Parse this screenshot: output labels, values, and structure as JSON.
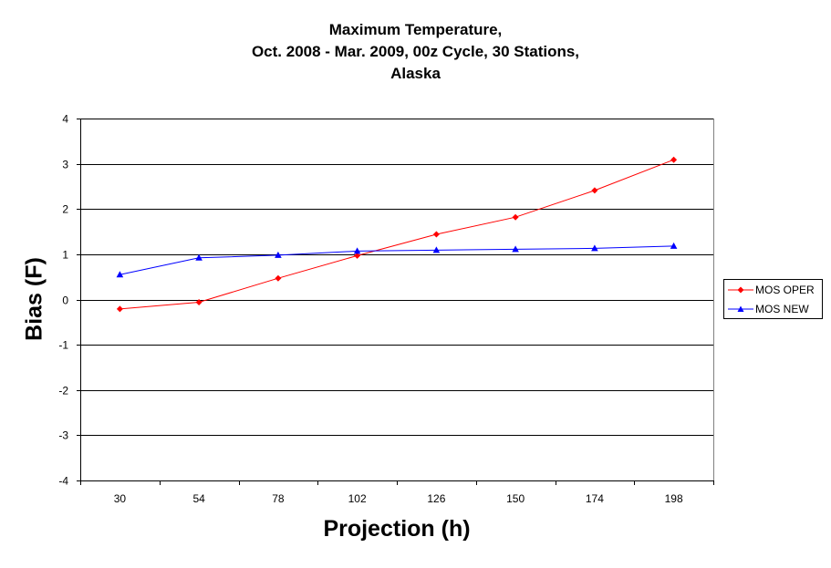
{
  "chart_data": {
    "type": "line",
    "title_lines": [
      "Maximum Temperature,",
      "Oct. 2008 - Mar. 2009, 00z Cycle, 30 Stations,",
      "Alaska"
    ],
    "xlabel": "Projection (h)",
    "ylabel": "Bias (F)",
    "categories": [
      "30",
      "54",
      "78",
      "102",
      "126",
      "150",
      "174",
      "198"
    ],
    "ylim": [
      -4,
      4
    ],
    "yticks": [
      4,
      3,
      2,
      1,
      0,
      -1,
      -2,
      -3,
      -4
    ],
    "grid": true,
    "legend_position": "right",
    "series": [
      {
        "name": "MOS OPER",
        "color": "#ff0000",
        "marker": "diamond",
        "values": [
          -0.21,
          -0.06,
          0.47,
          0.97,
          1.44,
          1.82,
          2.41,
          3.09
        ]
      },
      {
        "name": "MOS NEW",
        "color": "#0000ff",
        "marker": "triangle",
        "values": [
          0.55,
          0.92,
          0.98,
          1.07,
          1.09,
          1.11,
          1.13,
          1.18
        ]
      }
    ]
  }
}
